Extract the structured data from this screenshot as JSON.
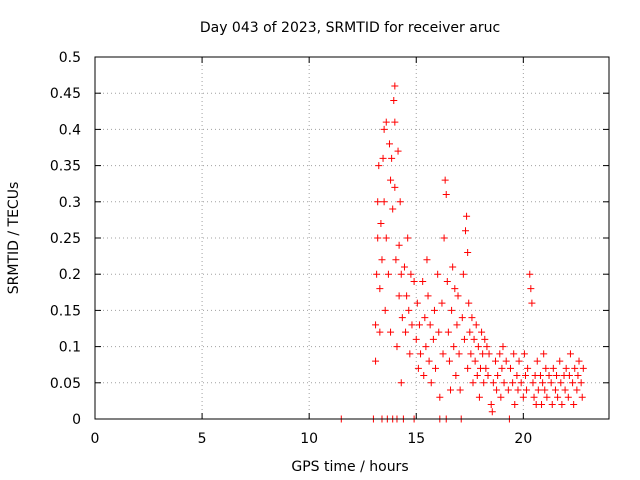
{
  "chart_data": {
    "type": "scatter",
    "title": "Day 043 of 2023, SRMTID for receiver aruc",
    "xlabel": "GPS time / hours",
    "ylabel": "SRMTID / TECUs",
    "xlim": [
      0,
      24
    ],
    "ylim": [
      0,
      0.5
    ],
    "x_ticks": [
      0,
      5,
      10,
      15,
      20
    ],
    "x_tick_labels": [
      "0",
      "5",
      "10",
      "15",
      "20"
    ],
    "y_ticks": [
      0,
      0.05,
      0.1,
      0.15,
      0.2,
      0.25,
      0.3,
      0.35,
      0.4,
      0.45,
      0.5
    ],
    "y_tick_labels": [
      "0",
      "0.05",
      "0.1",
      "0.15",
      "0.2",
      "0.25",
      "0.3",
      "0.35",
      "0.4",
      "0.45",
      "0.5"
    ],
    "grid": true,
    "marker": "plus",
    "color": "#ff0000",
    "series": [
      {
        "name": "SRMTID",
        "points": [
          [
            11.5,
            0.0
          ],
          [
            13.0,
            0.0
          ],
          [
            13.1,
            0.13
          ],
          [
            13.1,
            0.08
          ],
          [
            13.15,
            0.2
          ],
          [
            13.2,
            0.3
          ],
          [
            13.2,
            0.25
          ],
          [
            13.25,
            0.35
          ],
          [
            13.3,
            0.18
          ],
          [
            13.3,
            0.12
          ],
          [
            13.35,
            0.27
          ],
          [
            13.4,
            0.0
          ],
          [
            13.4,
            0.22
          ],
          [
            13.45,
            0.36
          ],
          [
            13.5,
            0.4
          ],
          [
            13.5,
            0.3
          ],
          [
            13.55,
            0.15
          ],
          [
            13.6,
            0.41
          ],
          [
            13.6,
            0.25
          ],
          [
            13.65,
            0.0
          ],
          [
            13.7,
            0.2
          ],
          [
            13.75,
            0.38
          ],
          [
            13.8,
            0.33
          ],
          [
            13.8,
            0.12
          ],
          [
            13.85,
            0.36
          ],
          [
            13.9,
            0.29
          ],
          [
            13.9,
            0.0
          ],
          [
            13.95,
            0.44
          ],
          [
            14.0,
            0.46
          ],
          [
            14.0,
            0.41
          ],
          [
            14.0,
            0.32
          ],
          [
            14.05,
            0.22
          ],
          [
            14.1,
            0.1
          ],
          [
            14.1,
            0.0
          ],
          [
            14.15,
            0.37
          ],
          [
            14.2,
            0.24
          ],
          [
            14.2,
            0.17
          ],
          [
            14.25,
            0.3
          ],
          [
            14.3,
            0.05
          ],
          [
            14.3,
            0.2
          ],
          [
            14.35,
            0.14
          ],
          [
            14.4,
            0.0
          ],
          [
            14.45,
            0.21
          ],
          [
            14.5,
            0.12
          ],
          [
            14.55,
            0.17
          ],
          [
            14.6,
            0.25
          ],
          [
            14.65,
            0.15
          ],
          [
            14.7,
            0.09
          ],
          [
            14.75,
            0.2
          ],
          [
            14.8,
            0.13
          ],
          [
            14.9,
            0.19
          ],
          [
            14.9,
            0.0
          ],
          [
            15.0,
            0.11
          ],
          [
            15.05,
            0.16
          ],
          [
            15.1,
            0.07
          ],
          [
            15.15,
            0.13
          ],
          [
            15.2,
            0.09
          ],
          [
            15.3,
            0.19
          ],
          [
            15.35,
            0.06
          ],
          [
            15.4,
            0.14
          ],
          [
            15.45,
            0.1
          ],
          [
            15.5,
            0.22
          ],
          [
            15.55,
            0.17
          ],
          [
            15.6,
            0.08
          ],
          [
            15.65,
            0.13
          ],
          [
            15.7,
            0.05
          ],
          [
            15.8,
            0.11
          ],
          [
            15.85,
            0.15
          ],
          [
            15.9,
            0.07
          ],
          [
            16.0,
            0.2
          ],
          [
            16.05,
            0.12
          ],
          [
            16.1,
            0.03
          ],
          [
            16.1,
            0.0
          ],
          [
            16.2,
            0.16
          ],
          [
            16.25,
            0.09
          ],
          [
            16.3,
            0.25
          ],
          [
            16.35,
            0.33
          ],
          [
            16.4,
            0.31
          ],
          [
            16.4,
            0.0
          ],
          [
            16.45,
            0.19
          ],
          [
            16.5,
            0.12
          ],
          [
            16.55,
            0.08
          ],
          [
            16.6,
            0.04
          ],
          [
            16.65,
            0.15
          ],
          [
            16.7,
            0.21
          ],
          [
            16.75,
            0.1
          ],
          [
            16.8,
            0.18
          ],
          [
            16.85,
            0.06
          ],
          [
            16.9,
            0.13
          ],
          [
            16.95,
            0.17
          ],
          [
            17.0,
            0.09
          ],
          [
            17.05,
            0.04
          ],
          [
            17.1,
            0.0
          ],
          [
            17.15,
            0.14
          ],
          [
            17.2,
            0.2
          ],
          [
            17.25,
            0.11
          ],
          [
            17.3,
            0.26
          ],
          [
            17.35,
            0.28
          ],
          [
            17.4,
            0.23
          ],
          [
            17.4,
            0.07
          ],
          [
            17.45,
            0.16
          ],
          [
            17.5,
            0.12
          ],
          [
            17.55,
            0.09
          ],
          [
            17.6,
            0.14
          ],
          [
            17.65,
            0.05
          ],
          [
            17.7,
            0.11
          ],
          [
            17.75,
            0.08
          ],
          [
            17.8,
            0.13
          ],
          [
            17.85,
            0.06
          ],
          [
            17.9,
            0.1
          ],
          [
            17.95,
            0.03
          ],
          [
            18.0,
            0.07
          ],
          [
            18.05,
            0.12
          ],
          [
            18.1,
            0.09
          ],
          [
            18.15,
            0.05
          ],
          [
            18.2,
            0.11
          ],
          [
            18.25,
            0.07
          ],
          [
            18.3,
            0.1
          ],
          [
            18.35,
            0.06
          ],
          [
            18.4,
            0.09
          ],
          [
            18.5,
            0.02
          ],
          [
            18.55,
            0.01
          ],
          [
            18.6,
            0.05
          ],
          [
            18.7,
            0.08
          ],
          [
            18.75,
            0.04
          ],
          [
            18.8,
            0.06
          ],
          [
            18.9,
            0.09
          ],
          [
            18.95,
            0.03
          ],
          [
            19.0,
            0.07
          ],
          [
            19.05,
            0.1
          ],
          [
            19.1,
            0.05
          ],
          [
            19.2,
            0.08
          ],
          [
            19.3,
            0.04
          ],
          [
            19.35,
            0.0
          ],
          [
            19.4,
            0.07
          ],
          [
            19.5,
            0.05
          ],
          [
            19.55,
            0.09
          ],
          [
            19.6,
            0.02
          ],
          [
            19.7,
            0.06
          ],
          [
            19.75,
            0.04
          ],
          [
            19.8,
            0.08
          ],
          [
            19.9,
            0.05
          ],
          [
            20.0,
            0.03
          ],
          [
            20.05,
            0.09
          ],
          [
            20.1,
            0.06
          ],
          [
            20.15,
            0.04
          ],
          [
            20.2,
            0.07
          ],
          [
            20.3,
            0.2
          ],
          [
            20.35,
            0.18
          ],
          [
            20.4,
            0.16
          ],
          [
            20.45,
            0.05
          ],
          [
            20.5,
            0.03
          ],
          [
            20.55,
            0.06
          ],
          [
            20.6,
            0.02
          ],
          [
            20.65,
            0.08
          ],
          [
            20.7,
            0.04
          ],
          [
            20.8,
            0.06
          ],
          [
            20.85,
            0.02
          ],
          [
            20.9,
            0.05
          ],
          [
            20.95,
            0.09
          ],
          [
            21.0,
            0.04
          ],
          [
            21.05,
            0.07
          ],
          [
            21.1,
            0.03
          ],
          [
            21.2,
            0.06
          ],
          [
            21.3,
            0.05
          ],
          [
            21.35,
            0.02
          ],
          [
            21.4,
            0.07
          ],
          [
            21.5,
            0.04
          ],
          [
            21.55,
            0.06
          ],
          [
            21.6,
            0.03
          ],
          [
            21.7,
            0.08
          ],
          [
            21.75,
            0.05
          ],
          [
            21.8,
            0.02
          ],
          [
            21.9,
            0.06
          ],
          [
            21.95,
            0.04
          ],
          [
            22.0,
            0.07
          ],
          [
            22.1,
            0.03
          ],
          [
            22.15,
            0.06
          ],
          [
            22.2,
            0.09
          ],
          [
            22.3,
            0.05
          ],
          [
            22.35,
            0.02
          ],
          [
            22.4,
            0.07
          ],
          [
            22.5,
            0.04
          ],
          [
            22.55,
            0.06
          ],
          [
            22.6,
            0.08
          ],
          [
            22.7,
            0.05
          ],
          [
            22.75,
            0.03
          ],
          [
            22.8,
            0.07
          ]
        ]
      }
    ]
  }
}
